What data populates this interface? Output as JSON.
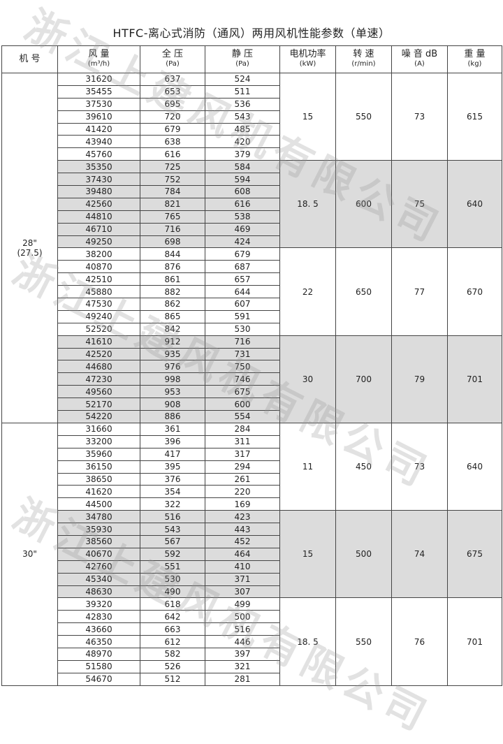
{
  "title": "HTFC-离心式消防（通风）两用风机性能参数（单速）",
  "watermark": "浙江上建风机有限公司",
  "headers": [
    {
      "label": "机 号",
      "unit": ""
    },
    {
      "label": "风 量",
      "unit": "(m³/h)"
    },
    {
      "label": "全 压",
      "unit": "(Pa)"
    },
    {
      "label": "静 压",
      "unit": "(Pa)"
    },
    {
      "label": "电机功率",
      "unit": "(kW)"
    },
    {
      "label": "转 速",
      "unit": "(r/min)"
    },
    {
      "label": "噪 音 dB",
      "unit": "(A)"
    },
    {
      "label": "重 量",
      "unit": "(kg)"
    }
  ],
  "shade_color": "#dcdcdc",
  "models": [
    {
      "model": "28\"\n(27.5)",
      "groups": [
        {
          "power": "15",
          "speed": "550",
          "noise": "73",
          "weight": "615",
          "shaded": false,
          "rows": [
            [
              "31620",
              "637",
              "524"
            ],
            [
              "35455",
              "653",
              "511"
            ],
            [
              "37530",
              "695",
              "536"
            ],
            [
              "39610",
              "720",
              "543"
            ],
            [
              "41420",
              "679",
              "485"
            ],
            [
              "43940",
              "638",
              "420"
            ],
            [
              "45760",
              "616",
              "379"
            ]
          ]
        },
        {
          "power": "18. 5",
          "speed": "600",
          "noise": "75",
          "weight": "640",
          "shaded": true,
          "rows": [
            [
              "35350",
              "725",
              "584"
            ],
            [
              "37430",
              "752",
              "594"
            ],
            [
              "39480",
              "784",
              "608"
            ],
            [
              "42560",
              "821",
              "616"
            ],
            [
              "44810",
              "765",
              "538"
            ],
            [
              "46710",
              "716",
              "469"
            ],
            [
              "49250",
              "698",
              "424"
            ]
          ]
        },
        {
          "power": "22",
          "speed": "650",
          "noise": "77",
          "weight": "670",
          "shaded": false,
          "rows": [
            [
              "38200",
              "844",
              "679"
            ],
            [
              "40870",
              "876",
              "687"
            ],
            [
              "42510",
              "861",
              "657"
            ],
            [
              "45880",
              "882",
              "644"
            ],
            [
              "47530",
              "862",
              "607"
            ],
            [
              "49240",
              "865",
              "591"
            ],
            [
              "52520",
              "842",
              "530"
            ]
          ]
        },
        {
          "power": "30",
          "speed": "700",
          "noise": "79",
          "weight": "701",
          "shaded": true,
          "rows": [
            [
              "41610",
              "912",
              "716"
            ],
            [
              "42520",
              "935",
              "731"
            ],
            [
              "44680",
              "976",
              "750"
            ],
            [
              "47230",
              "998",
              "746"
            ],
            [
              "49560",
              "953",
              "675"
            ],
            [
              "52170",
              "908",
              "600"
            ],
            [
              "54220",
              "886",
              "554"
            ]
          ]
        }
      ]
    },
    {
      "model": "30\"",
      "groups": [
        {
          "power": "11",
          "speed": "450",
          "noise": "73",
          "weight": "640",
          "shaded": false,
          "rows": [
            [
              "31660",
              "361",
              "284"
            ],
            [
              "33200",
              "396",
              "311"
            ],
            [
              "35960",
              "417",
              "317"
            ],
            [
              "36150",
              "395",
              "294"
            ],
            [
              "38650",
              "376",
              "261"
            ],
            [
              "41620",
              "354",
              "220"
            ],
            [
              "44500",
              "322",
              "169"
            ]
          ]
        },
        {
          "power": "15",
          "speed": "500",
          "noise": "74",
          "weight": "675",
          "shaded": true,
          "rows": [
            [
              "34780",
              "516",
              "423"
            ],
            [
              "35930",
              "543",
              "443"
            ],
            [
              "38560",
              "567",
              "452"
            ],
            [
              "40670",
              "592",
              "464"
            ],
            [
              "42760",
              "551",
              "410"
            ],
            [
              "45340",
              "530",
              "371"
            ],
            [
              "48630",
              "490",
              "307"
            ]
          ]
        },
        {
          "power": "18. 5",
          "speed": "550",
          "noise": "76",
          "weight": "701",
          "shaded": false,
          "rows": [
            [
              "39320",
              "618",
              "499"
            ],
            [
              "42830",
              "642",
              "500"
            ],
            [
              "43660",
              "663",
              "516"
            ],
            [
              "46350",
              "612",
              "446"
            ],
            [
              "48970",
              "582",
              "397"
            ],
            [
              "51580",
              "526",
              "321"
            ],
            [
              "54670",
              "512",
              "281"
            ]
          ]
        }
      ]
    }
  ]
}
